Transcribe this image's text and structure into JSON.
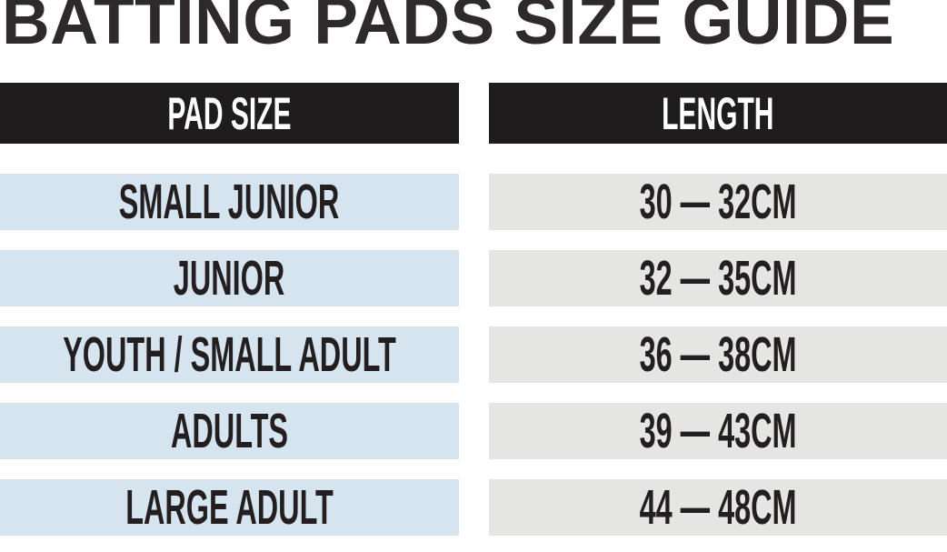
{
  "title": "BATTING PADS SIZE GUIDE",
  "table": {
    "headers": {
      "pad_size": "PAD SIZE",
      "length": "LENGTH"
    },
    "rows": [
      {
        "pad_size": "SMALL JUNIOR",
        "length": "30 — 32CM"
      },
      {
        "pad_size": "JUNIOR",
        "length": "32 — 35CM"
      },
      {
        "pad_size": "YOUTH / SMALL ADULT",
        "length": "36 — 38CM"
      },
      {
        "pad_size": "ADULTS",
        "length": "39 — 43CM"
      },
      {
        "pad_size": "LARGE ADULT",
        "length": "44 — 48CM"
      }
    ]
  },
  "colors": {
    "background": "#ffffff",
    "title_text": "#2e2a2b",
    "header_bg": "#1e1c1d",
    "header_text": "#ffffff",
    "cell_text": "#231f20",
    "pad_size_cell_bg": "#d5e4ee",
    "length_cell_bg": "#e5e5e3"
  },
  "chart_data": {
    "type": "table",
    "title": "BATTING PADS SIZE GUIDE",
    "columns": [
      "PAD SIZE",
      "LENGTH"
    ],
    "rows": [
      [
        "SMALL JUNIOR",
        "30 — 32CM"
      ],
      [
        "JUNIOR",
        "32 — 35CM"
      ],
      [
        "YOUTH / SMALL ADULT",
        "36 — 38CM"
      ],
      [
        "ADULTS",
        "39 — 43CM"
      ],
      [
        "LARGE ADULT",
        "44 — 48CM"
      ]
    ],
    "length_cm_ranges": [
      {
        "pad_size": "SMALL JUNIOR",
        "min_cm": 30,
        "max_cm": 32
      },
      {
        "pad_size": "JUNIOR",
        "min_cm": 32,
        "max_cm": 35
      },
      {
        "pad_size": "YOUTH / SMALL ADULT",
        "min_cm": 36,
        "max_cm": 38
      },
      {
        "pad_size": "ADULTS",
        "min_cm": 39,
        "max_cm": 43
      },
      {
        "pad_size": "LARGE ADULT",
        "min_cm": 44,
        "max_cm": 48
      }
    ],
    "layout_hints": {
      "header_style": "black bars with white condensed text",
      "pad_size_column_bg": "light blue",
      "length_column_bg": "light gray",
      "rows_separated_by_white_gaps": true
    }
  }
}
